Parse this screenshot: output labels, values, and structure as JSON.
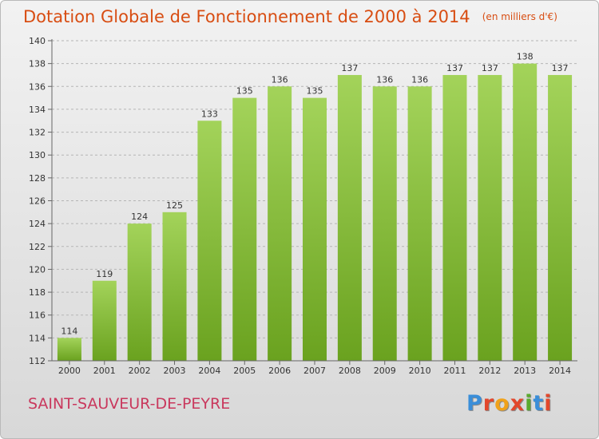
{
  "header": {
    "title": "Dotation Globale de Fonctionnement de 2000 à 2014",
    "unit": "(en milliers d'€)"
  },
  "footer": {
    "commune": "SAINT-SAUVEUR-DE-PEYRE",
    "brand": "Proxiti",
    "brand_colors": [
      "#3a8ed9",
      "#e2472c",
      "#f0a21a",
      "#e2472c",
      "#5aaa2e",
      "#3a8ed9",
      "#e2472c"
    ]
  },
  "chart_data": {
    "type": "bar",
    "categories": [
      "2000",
      "2001",
      "2002",
      "2003",
      "2004",
      "2005",
      "2006",
      "2007",
      "2008",
      "2009",
      "2010",
      "2011",
      "2012",
      "2013",
      "2014"
    ],
    "values": [
      114,
      119,
      124,
      125,
      133,
      135,
      136,
      135,
      137,
      136,
      136,
      137,
      137,
      138,
      137
    ],
    "ylim": [
      112,
      140
    ],
    "yticks": [
      112,
      114,
      116,
      118,
      120,
      122,
      124,
      126,
      128,
      130,
      132,
      134,
      136,
      138,
      140
    ],
    "grid": "horizontal dashed",
    "bar_color": "#8cc63f",
    "xlabel": "",
    "ylabel": ""
  }
}
